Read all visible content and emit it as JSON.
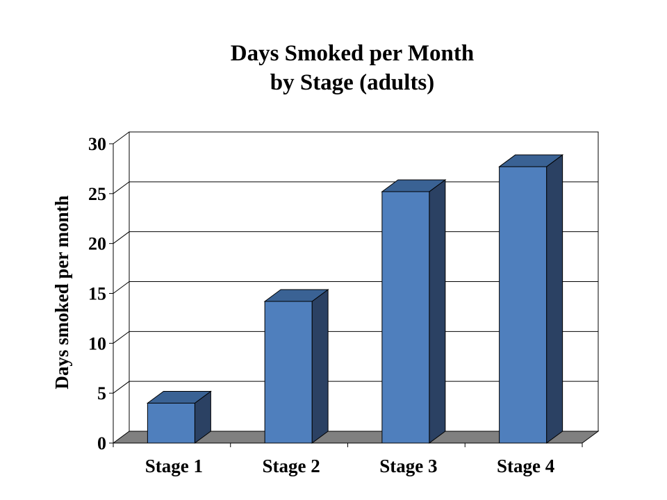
{
  "chart_data": {
    "type": "bar",
    "title_lines": [
      "Days Smoked per Month",
      "by Stage (adults)"
    ],
    "categories": [
      "Stage 1",
      "Stage 2",
      "Stage 3",
      "Stage 4"
    ],
    "values": [
      4,
      14.2,
      25.2,
      27.7
    ],
    "ylabel": "Days smoked per month",
    "xlabel": "",
    "ylim": [
      0,
      30
    ],
    "yticks": [
      0,
      5,
      10,
      15,
      20,
      25,
      30
    ],
    "grid": true,
    "legend": "none",
    "style": "3d-column",
    "colors": {
      "bar_front": "#4f7fbd",
      "bar_top": "#3a6294",
      "bar_side": "#2b4163",
      "floor": "#808080",
      "grid": "#000000"
    }
  }
}
